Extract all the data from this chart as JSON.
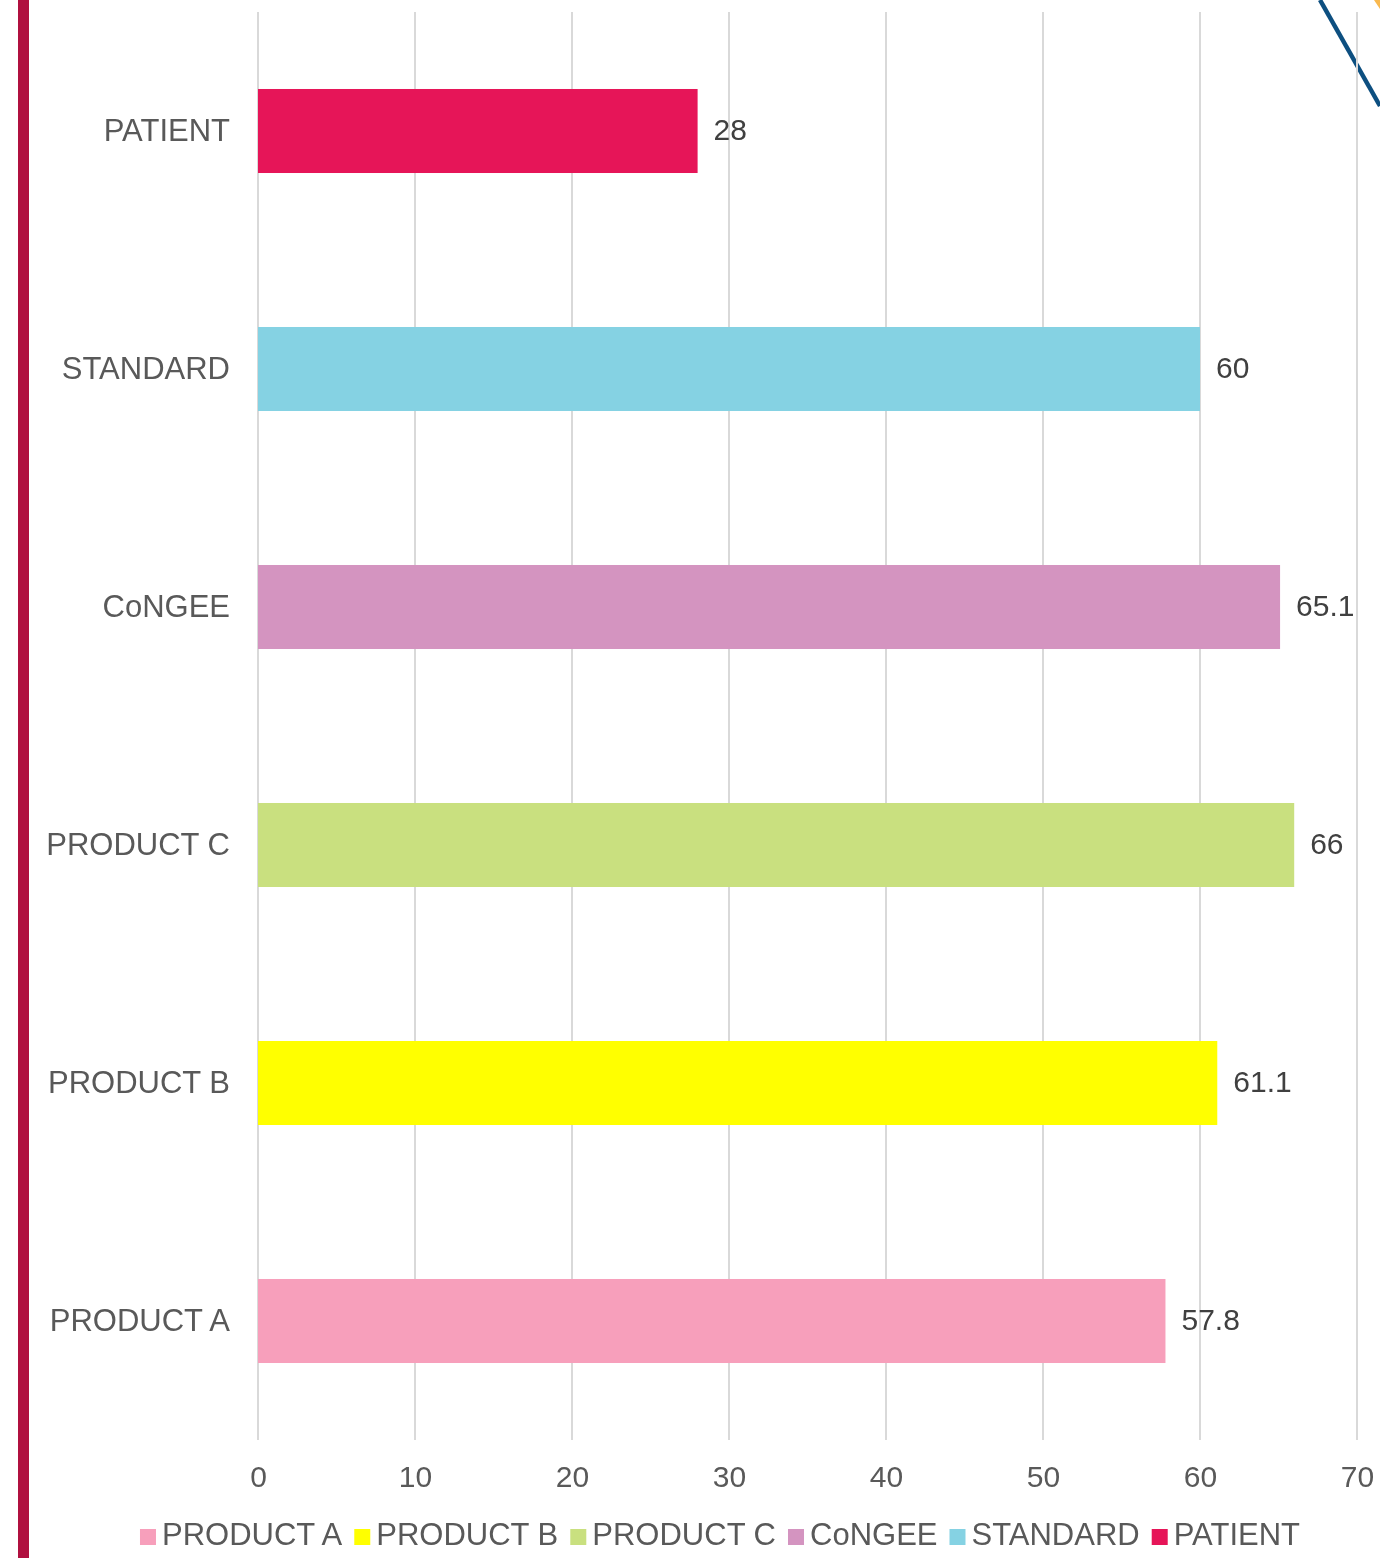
{
  "chart_data": {
    "type": "bar",
    "orientation": "horizontal",
    "stacked": true,
    "categories": [
      "PATIENT",
      "STANDARD",
      "CoNGEE",
      "PRODUCT C",
      "PRODUCT B",
      "PRODUCT A"
    ],
    "series": [
      {
        "name": "PRODUCT A",
        "color": "#f79fbb",
        "values": [
          null,
          null,
          null,
          null,
          null,
          57.8
        ]
      },
      {
        "name": "PRODUCT B",
        "color": "#ffff00",
        "values": [
          null,
          null,
          null,
          null,
          61.1,
          null
        ]
      },
      {
        "name": "PRODUCT C",
        "color": "#c9e07f",
        "values": [
          null,
          null,
          null,
          66,
          null,
          null
        ]
      },
      {
        "name": "CoNGEE",
        "color": "#d494c0",
        "values": [
          null,
          null,
          65.1,
          null,
          null,
          null
        ]
      },
      {
        "name": "STANDARD",
        "color": "#85d2e3",
        "values": [
          null,
          60,
          null,
          null,
          null,
          null
        ]
      },
      {
        "name": "PATIENT",
        "color": "#e61558",
        "values": [
          28,
          null,
          null,
          null,
          null,
          null
        ]
      }
    ],
    "xlim": [
      0,
      70
    ],
    "xticks": [
      0,
      10,
      20,
      30,
      40,
      50,
      60,
      70
    ],
    "grid": "x",
    "legend": "bottom",
    "data_labels": true
  }
}
